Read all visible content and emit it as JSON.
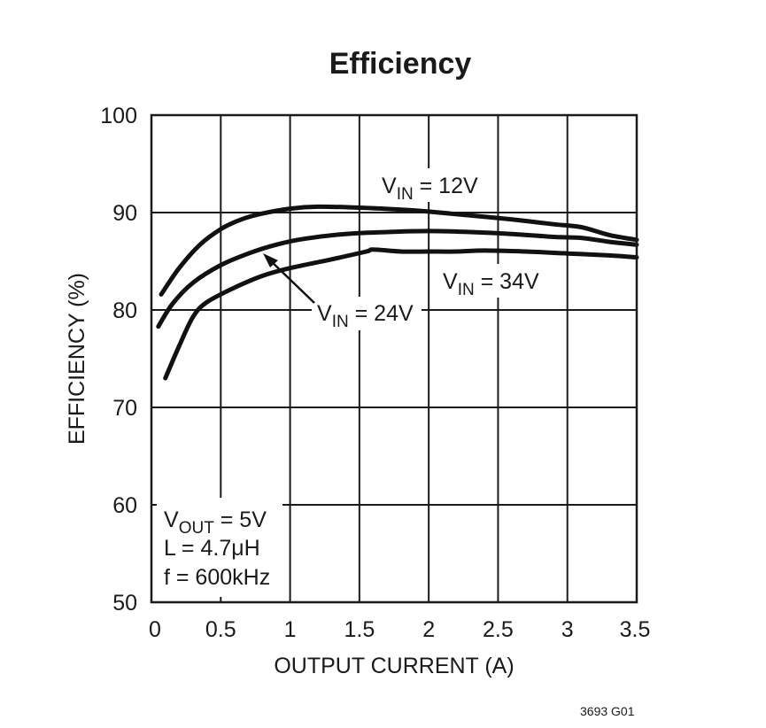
{
  "chart_data": {
    "type": "line",
    "title": "Efficiency",
    "xlabel": "OUTPUT CURRENT (A)",
    "ylabel": "EFFICIENCY (%)",
    "xlim": [
      0,
      3.5
    ],
    "ylim": [
      50,
      100
    ],
    "x_ticks": [
      "0",
      "0.5",
      "1",
      "1.5",
      "2",
      "2.5",
      "3",
      "3.5"
    ],
    "y_ticks": [
      "50",
      "60",
      "70",
      "80",
      "90",
      "100"
    ],
    "grid": true,
    "series": [
      {
        "name": "V_IN = 12V",
        "x": [
          0.07,
          0.2,
          0.35,
          0.5,
          0.65,
          0.8,
          1.0,
          1.2,
          1.5,
          1.8,
          2.0,
          2.3,
          2.6,
          2.9,
          3.1,
          3.3,
          3.5
        ],
        "y": [
          81.6,
          84.3,
          86.7,
          88.3,
          89.3,
          89.9,
          90.4,
          90.6,
          90.5,
          90.3,
          90.1,
          89.7,
          89.3,
          88.8,
          88.5,
          87.7,
          87.2
        ]
      },
      {
        "name": "V_IN = 24V",
        "x": [
          0.05,
          0.15,
          0.3,
          0.5,
          0.7,
          0.9,
          1.1,
          1.4,
          1.7,
          2.0,
          2.3,
          2.6,
          2.9,
          3.1,
          3.3,
          3.5
        ],
        "y": [
          78.3,
          80.6,
          82.8,
          84.6,
          85.8,
          86.7,
          87.3,
          87.8,
          88.0,
          88.1,
          88.0,
          87.8,
          87.5,
          87.4,
          87.0,
          86.7
        ]
      },
      {
        "name": "V_IN = 34V",
        "x": [
          0.1,
          0.2,
          0.3,
          0.4,
          0.6,
          0.8,
          1.0,
          1.3,
          1.55,
          1.6,
          1.8,
          2.0,
          2.2,
          2.4,
          2.7,
          3.0,
          3.3,
          3.5
        ],
        "y": [
          73.0,
          76.3,
          79.3,
          80.8,
          82.3,
          83.5,
          84.3,
          85.2,
          86.0,
          86.2,
          86.0,
          86.0,
          86.0,
          86.1,
          86.0,
          85.8,
          85.6,
          85.4
        ]
      }
    ],
    "annotations": {
      "vin12": {
        "main": "V",
        "sub": "IN",
        "rest": " = 12V"
      },
      "vin24": {
        "main": "V",
        "sub": "IN",
        "rest": " = 24V"
      },
      "vin34": {
        "main": "V",
        "sub": "IN",
        "rest": " = 34V"
      },
      "conditions": [
        {
          "main": "V",
          "sub": "OUT",
          "rest": " = 5V"
        },
        {
          "main": "L = 4.7μH",
          "sub": "",
          "rest": ""
        },
        {
          "main": "f = 600kHz",
          "sub": "",
          "rest": ""
        }
      ]
    },
    "figure_code": "3693 G01"
  }
}
